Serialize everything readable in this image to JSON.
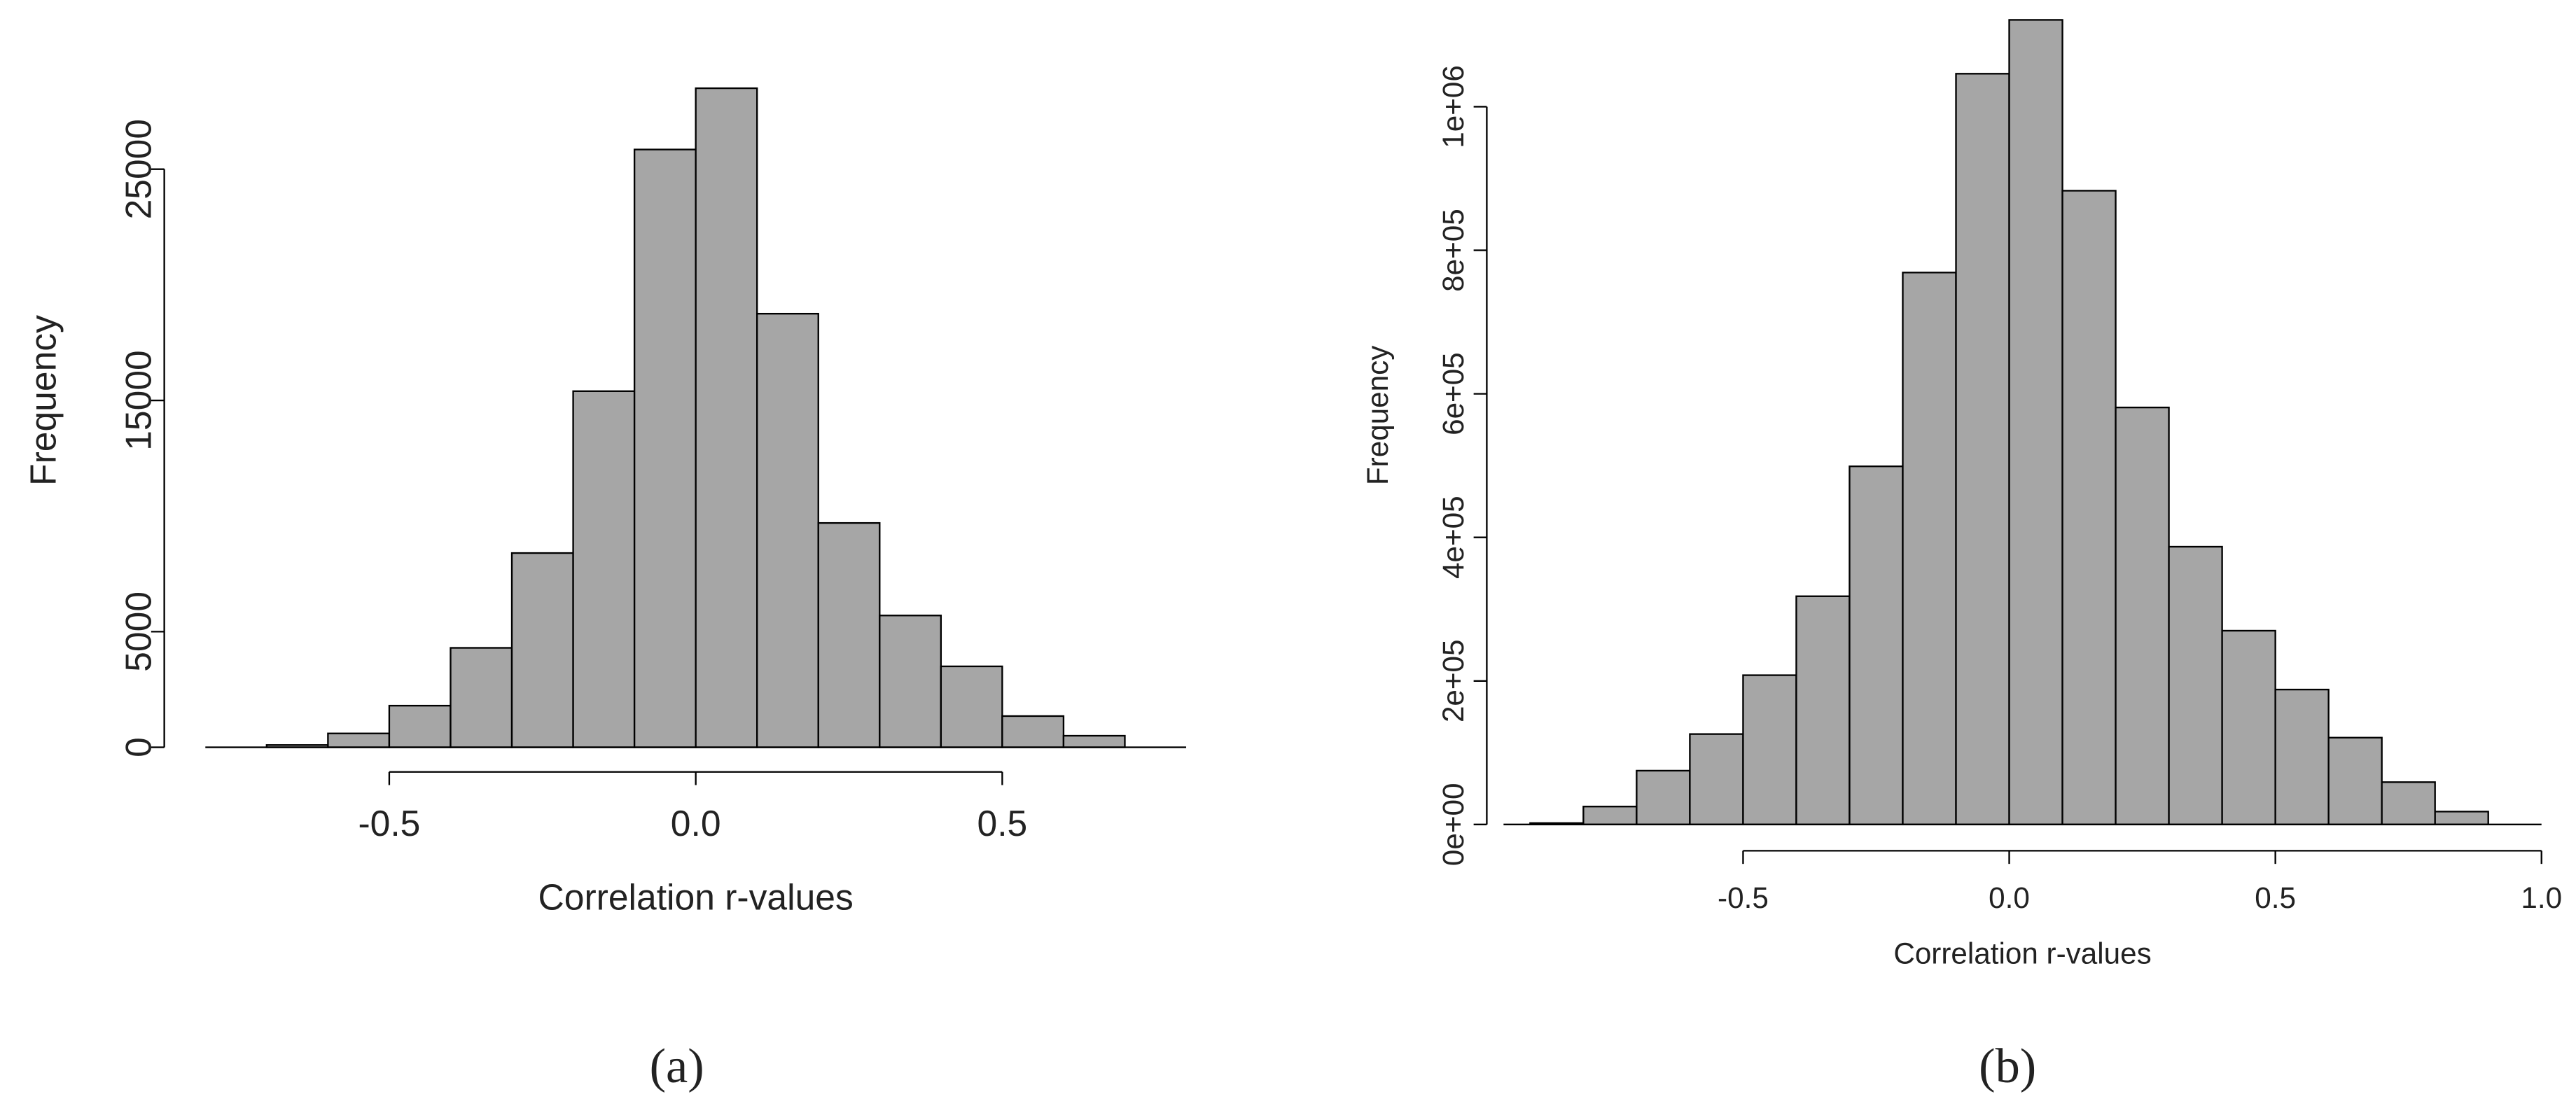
{
  "chart_data": [
    {
      "type": "histogram",
      "caption": "(a)",
      "x_label": "Correlation r-values",
      "y_label": "Frequency",
      "bins": [
        -0.7,
        -0.6,
        -0.5,
        -0.4,
        -0.3,
        -0.2,
        -0.1,
        0,
        0.1,
        0.2,
        0.3,
        0.4,
        0.5,
        0.6,
        0.7
      ],
      "values": [
        100,
        600,
        1800,
        4300,
        8400,
        15400,
        25850,
        28500,
        18750,
        9700,
        5700,
        3500,
        1350,
        500
      ],
      "color": "#a6a6a6",
      "xlim": [
        -0.8,
        0.8
      ],
      "xticks": [
        -0.5,
        {
          "value": 0,
          "label": "0.0"
        },
        0.5
      ],
      "ylim": [
        0,
        30000
      ],
      "yticks": [
        0,
        5000,
        15000,
        25000
      ]
    },
    {
      "type": "histogram",
      "caption": "(b)",
      "x_label": "Correlation r-values",
      "y_label": "Frequency",
      "bins": [
        -0.9,
        -0.8,
        -0.7,
        -0.6,
        -0.5,
        -0.4,
        -0.3,
        -0.2,
        -0.1,
        0,
        0.1,
        0.2,
        0.3,
        0.4,
        0.5,
        0.6,
        0.7,
        0.8,
        0.9
      ],
      "values": [
        2000,
        25000,
        75000,
        126000,
        208000,
        318000,
        499000,
        769000,
        1046000,
        1121000,
        883000,
        581000,
        387000,
        270000,
        188000,
        121000,
        59000,
        18000
      ],
      "color": "#a6a6a6",
      "xlim": [
        -0.95,
        1.0
      ],
      "xticks": [
        -0.5,
        {
          "value": 0,
          "label": "0.0"
        },
        0.5,
        {
          "value": 1,
          "label": "1.0"
        }
      ],
      "ylim": [
        0,
        1140000
      ],
      "yticks": [
        {
          "value": 0,
          "label": "0e+00"
        },
        {
          "value": 200000,
          "label": "2e+05"
        },
        {
          "value": 400000,
          "label": "4e+05"
        },
        {
          "value": 600000,
          "label": "6e+05"
        },
        {
          "value": 800000,
          "label": "8e+05"
        },
        {
          "value": 1000000,
          "label": "1e+06"
        }
      ]
    }
  ]
}
